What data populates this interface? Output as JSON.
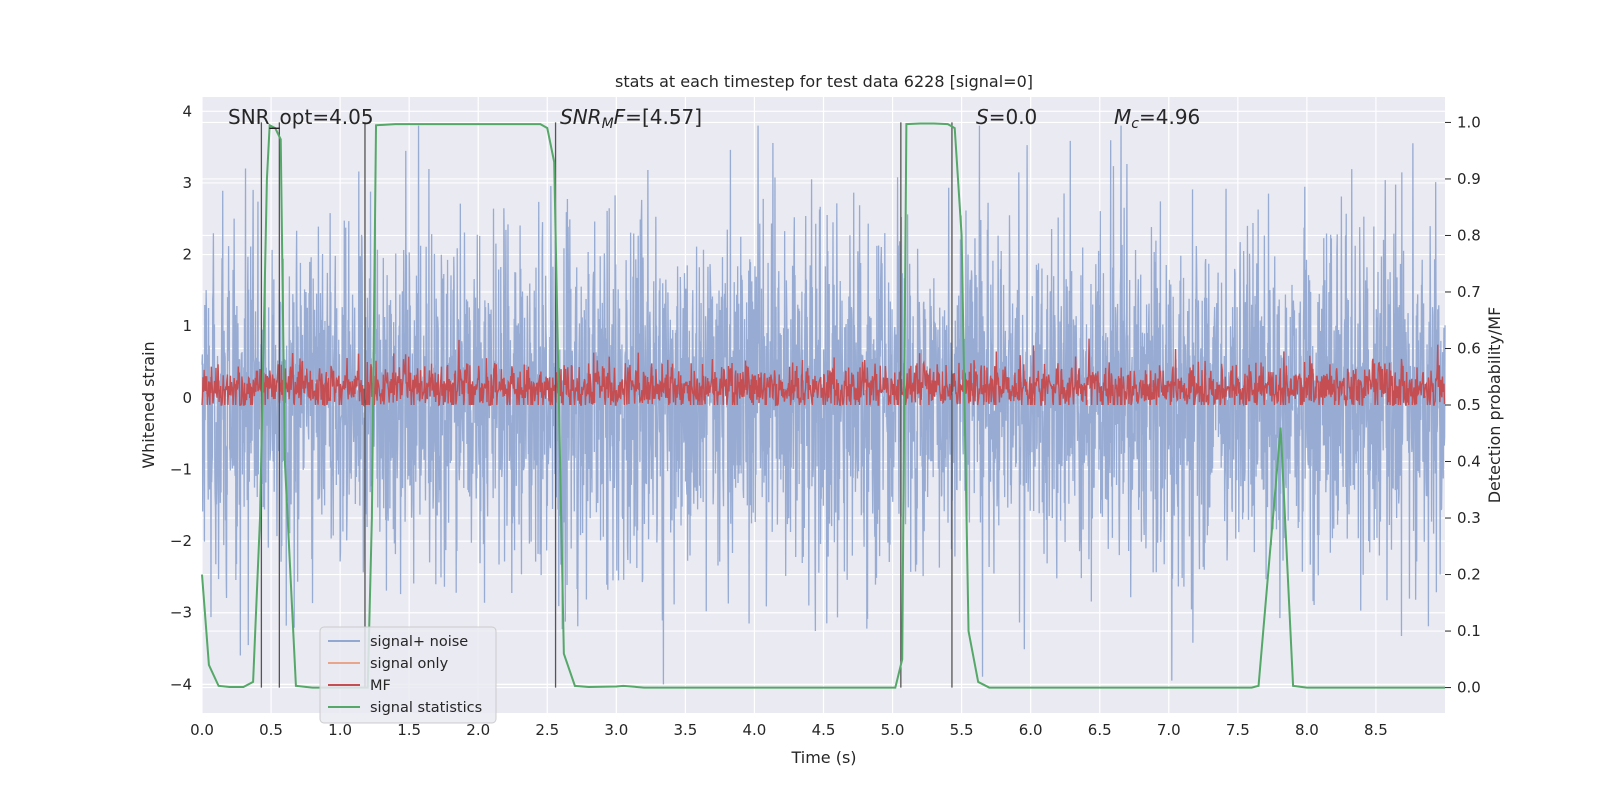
{
  "chart_data": {
    "type": "line",
    "title": "stats at each timestep for test data 6228 [signal=0]",
    "xlabel": "Time (s)",
    "ylabel": "Whitened strain",
    "y2label": "Detection probability/MF",
    "xlim": [
      0.0,
      9.0
    ],
    "ylim": [
      -4.4,
      4.2
    ],
    "y2lim": [
      -0.045,
      1.045
    ],
    "x_ticks": [
      "0.0",
      "0.5",
      "1.0",
      "1.5",
      "2.0",
      "2.5",
      "3.0",
      "3.5",
      "4.0",
      "4.5",
      "5.0",
      "5.5",
      "6.0",
      "6.5",
      "7.0",
      "7.5",
      "8.0",
      "8.5"
    ],
    "y_ticks": [
      "−4",
      "−3",
      "−2",
      "−1",
      "0",
      "1",
      "2",
      "3",
      "4"
    ],
    "y2_ticks": [
      "0.0",
      "0.1",
      "0.2",
      "0.3",
      "0.4",
      "0.5",
      "0.6",
      "0.7",
      "0.8",
      "0.9",
      "1.0"
    ],
    "grid": true,
    "legend_position": "lower-left",
    "annotations": {
      "snr_opt": "SNR_opt=4.05",
      "snr_mf": "[4.57]",
      "s_val": "0.0",
      "mc_val": "4.96"
    },
    "series": [
      {
        "name": "signal+ noise",
        "axis": "left",
        "color": "#92a8d1",
        "description_values": "noise samples approx Gaussian, std 1.2, x 0-9 s, extremes about -4 and +3.8"
      },
      {
        "name": "signal only",
        "axis": "left",
        "color": "#e8a58c",
        "values": []
      },
      {
        "name": "MF",
        "axis": "right",
        "color": "#c44e52",
        "baseline": 0.53,
        "range": [
          0.5,
          0.62
        ]
      },
      {
        "name": "signal statistics",
        "axis": "right",
        "color": "#55a868",
        "x": [
          0.0,
          0.05,
          0.12,
          0.2,
          0.3,
          0.37,
          0.42,
          0.47,
          0.49,
          0.53,
          0.57,
          0.6,
          0.68,
          0.8,
          1.0,
          1.15,
          1.2,
          1.23,
          1.26,
          1.4,
          2.0,
          2.45,
          2.5,
          2.55,
          2.62,
          2.7,
          2.8,
          3.0,
          3.05,
          3.2,
          4.0,
          5.0,
          5.02,
          5.07,
          5.1,
          5.2,
          5.3,
          5.4,
          5.45,
          5.5,
          5.55,
          5.62,
          5.7,
          6.0,
          7.0,
          7.6,
          7.65,
          7.81,
          7.9,
          8.0,
          9.0
        ],
        "values": [
          0.2,
          0.04,
          0.003,
          0.001,
          0.001,
          0.01,
          0.3,
          0.9,
          0.995,
          0.99,
          0.97,
          0.4,
          0.003,
          0.0,
          0.0,
          0.0,
          0.0,
          0.3,
          0.995,
          0.997,
          0.997,
          0.997,
          0.99,
          0.93,
          0.06,
          0.003,
          0.001,
          0.002,
          0.003,
          0.0,
          0.0,
          0.0,
          0.0,
          0.05,
          0.997,
          0.998,
          0.998,
          0.997,
          0.99,
          0.8,
          0.1,
          0.01,
          0.0,
          0.0,
          0.0,
          0.0,
          0.003,
          0.46,
          0.003,
          0.0,
          0.0
        ]
      }
    ],
    "vertical_lines_x": [
      0.43,
      0.56,
      1.18,
      2.56,
      5.06,
      5.43
    ]
  }
}
